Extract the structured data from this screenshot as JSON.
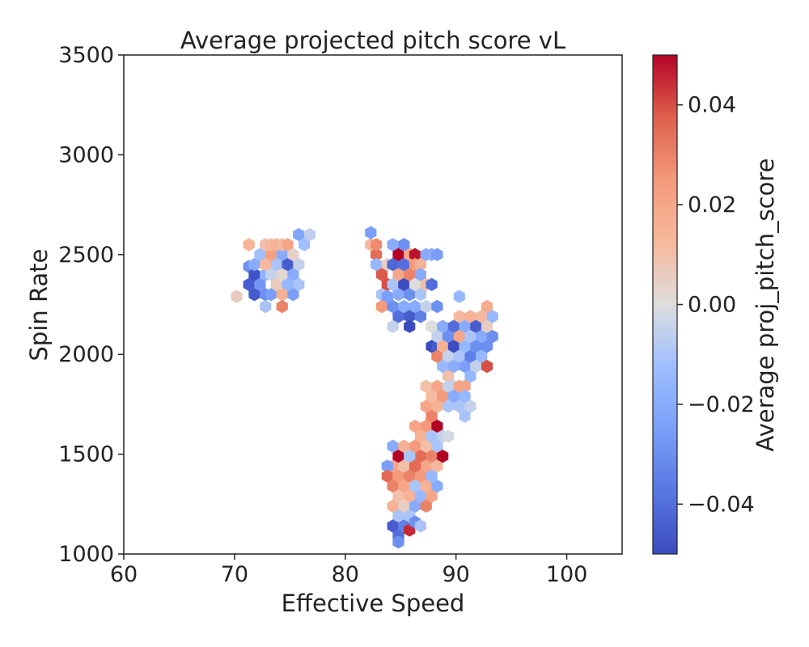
{
  "chart_data": {
    "type": "heatmap",
    "subtype": "hexbin",
    "title": "Average projected pitch score vL",
    "xlabel": "Effective Speed",
    "ylabel": "Spin Rate",
    "xlim": [
      60,
      105
    ],
    "ylim": [
      1000,
      3500
    ],
    "xticks": [
      60,
      70,
      80,
      90,
      100
    ],
    "yticks": [
      1000,
      1500,
      2000,
      2500,
      3000,
      3500
    ],
    "grid": false,
    "colorbar": {
      "label": "Average proj_pitch_score",
      "colormap": "coolwarm",
      "range": [
        -0.05,
        0.05
      ],
      "ticks": [
        0.04,
        0.02,
        0.0,
        -0.02,
        -0.04
      ],
      "tick_labels": [
        "0.04",
        "0.02",
        "0.00",
        "−0.02",
        "−0.04"
      ],
      "colors": {
        "low": "#3b4cc0",
        "mid": "#dddddd",
        "high": "#b40426"
      }
    },
    "cells": [
      {
        "x": 70.2,
        "y": 2290,
        "v": 0.006
      },
      {
        "x": 71.3,
        "y": 2550,
        "v": 0.014
      },
      {
        "x": 71.3,
        "y": 2440,
        "v": -0.03
      },
      {
        "x": 71.3,
        "y": 2350,
        "v": -0.045
      },
      {
        "x": 71.8,
        "y": 2400,
        "v": -0.048
      },
      {
        "x": 71.8,
        "y": 2300,
        "v": -0.046
      },
      {
        "x": 71.8,
        "y": 2450,
        "v": -0.02
      },
      {
        "x": 72.3,
        "y": 2350,
        "v": -0.028
      },
      {
        "x": 72.3,
        "y": 2500,
        "v": -0.012
      },
      {
        "x": 72.8,
        "y": 2400,
        "v": -0.018
      },
      {
        "x": 72.8,
        "y": 2300,
        "v": -0.03
      },
      {
        "x": 72.8,
        "y": 2550,
        "v": 0.01
      },
      {
        "x": 72.8,
        "y": 2450,
        "v": 0.012
      },
      {
        "x": 72.8,
        "y": 2240,
        "v": -0.01
      },
      {
        "x": 73.3,
        "y": 2500,
        "v": 0.022
      },
      {
        "x": 73.3,
        "y": 2400,
        "v": -0.005
      },
      {
        "x": 73.3,
        "y": 2300,
        "v": -0.025
      },
      {
        "x": 73.3,
        "y": 2550,
        "v": 0.012
      },
      {
        "x": 73.8,
        "y": 2350,
        "v": 0.006
      },
      {
        "x": 73.8,
        "y": 2450,
        "v": -0.01
      },
      {
        "x": 73.8,
        "y": 2550,
        "v": 0.015
      },
      {
        "x": 74.3,
        "y": 2400,
        "v": 0.002
      },
      {
        "x": 74.3,
        "y": 2300,
        "v": 0.016
      },
      {
        "x": 74.3,
        "y": 2500,
        "v": -0.02
      },
      {
        "x": 74.3,
        "y": 2240,
        "v": 0.03
      },
      {
        "x": 74.3,
        "y": 2550,
        "v": 0.012
      },
      {
        "x": 74.8,
        "y": 2450,
        "v": -0.045
      },
      {
        "x": 74.8,
        "y": 2350,
        "v": -0.015
      },
      {
        "x": 74.8,
        "y": 2550,
        "v": 0.02
      },
      {
        "x": 75.3,
        "y": 2500,
        "v": 0.004
      },
      {
        "x": 75.3,
        "y": 2400,
        "v": -0.02
      },
      {
        "x": 75.3,
        "y": 2300,
        "v": -0.025
      },
      {
        "x": 75.8,
        "y": 2600,
        "v": -0.022
      },
      {
        "x": 75.8,
        "y": 2450,
        "v": -0.005
      },
      {
        "x": 75.8,
        "y": 2350,
        "v": -0.01
      },
      {
        "x": 76.3,
        "y": 2550,
        "v": -0.012
      },
      {
        "x": 76.8,
        "y": 2600,
        "v": -0.006
      },
      {
        "x": 82.3,
        "y": 2550,
        "v": 0.012
      },
      {
        "x": 82.3,
        "y": 2610,
        "v": -0.025
      },
      {
        "x": 82.8,
        "y": 2500,
        "v": 0.035
      },
      {
        "x": 82.8,
        "y": 2550,
        "v": 0.028
      },
      {
        "x": 82.8,
        "y": 2450,
        "v": -0.015
      },
      {
        "x": 83.3,
        "y": 2400,
        "v": 0.038
      },
      {
        "x": 83.3,
        "y": 2300,
        "v": -0.01
      },
      {
        "x": 83.3,
        "y": 2240,
        "v": 0.025
      },
      {
        "x": 83.8,
        "y": 2350,
        "v": 0.04
      },
      {
        "x": 83.8,
        "y": 2450,
        "v": 0.005
      },
      {
        "x": 83.8,
        "y": 2290,
        "v": -0.025
      },
      {
        "x": 84.3,
        "y": 2550,
        "v": -0.02
      },
      {
        "x": 84.3,
        "y": 2450,
        "v": -0.042
      },
      {
        "x": 84.3,
        "y": 2350,
        "v": -0.01
      },
      {
        "x": 84.3,
        "y": 2240,
        "v": -0.03
      },
      {
        "x": 84.3,
        "y": 2140,
        "v": -0.005
      },
      {
        "x": 84.8,
        "y": 2500,
        "v": 0.05
      },
      {
        "x": 84.8,
        "y": 2400,
        "v": 0.02
      },
      {
        "x": 84.8,
        "y": 2300,
        "v": -0.02
      },
      {
        "x": 84.8,
        "y": 2190,
        "v": -0.04
      },
      {
        "x": 85.3,
        "y": 2550,
        "v": -0.03
      },
      {
        "x": 85.3,
        "y": 2450,
        "v": -0.04
      },
      {
        "x": 85.3,
        "y": 2350,
        "v": -0.05
      },
      {
        "x": 85.3,
        "y": 2240,
        "v": -0.02
      },
      {
        "x": 85.8,
        "y": 2500,
        "v": 0.02
      },
      {
        "x": 85.8,
        "y": 2400,
        "v": 0.03
      },
      {
        "x": 85.8,
        "y": 2300,
        "v": -0.03
      },
      {
        "x": 85.8,
        "y": 2190,
        "v": -0.045
      },
      {
        "x": 85.8,
        "y": 2140,
        "v": -0.05
      },
      {
        "x": 86.3,
        "y": 2500,
        "v": 0.048
      },
      {
        "x": 86.3,
        "y": 2450,
        "v": 0.025
      },
      {
        "x": 86.3,
        "y": 2350,
        "v": 0.0
      },
      {
        "x": 86.3,
        "y": 2240,
        "v": -0.02
      },
      {
        "x": 86.8,
        "y": 2450,
        "v": 0.015
      },
      {
        "x": 86.8,
        "y": 2400,
        "v": -0.02
      },
      {
        "x": 86.8,
        "y": 2300,
        "v": -0.01
      },
      {
        "x": 86.8,
        "y": 2190,
        "v": -0.035
      },
      {
        "x": 87.3,
        "y": 2500,
        "v": -0.02
      },
      {
        "x": 87.3,
        "y": 2350,
        "v": 0.01
      },
      {
        "x": 87.3,
        "y": 2240,
        "v": -0.005
      },
      {
        "x": 87.8,
        "y": 2500,
        "v": -0.02
      },
      {
        "x": 87.8,
        "y": 2350,
        "v": -0.04
      },
      {
        "x": 87.8,
        "y": 2140,
        "v": 0.0
      },
      {
        "x": 87.8,
        "y": 2040,
        "v": -0.05
      },
      {
        "x": 88.3,
        "y": 2500,
        "v": -0.025
      },
      {
        "x": 88.3,
        "y": 2240,
        "v": -0.03
      },
      {
        "x": 88.3,
        "y": 2040,
        "v": -0.045
      },
      {
        "x": 88.3,
        "y": 1990,
        "v": 0.03
      },
      {
        "x": 88.3,
        "y": 2090,
        "v": -0.005
      },
      {
        "x": 88.8,
        "y": 2140,
        "v": -0.02
      },
      {
        "x": 88.8,
        "y": 2040,
        "v": 0.015
      },
      {
        "x": 88.8,
        "y": 1940,
        "v": -0.015
      },
      {
        "x": 89.3,
        "y": 2090,
        "v": -0.03
      },
      {
        "x": 89.3,
        "y": 1990,
        "v": -0.005
      },
      {
        "x": 89.3,
        "y": 1890,
        "v": 0.01
      },
      {
        "x": 89.8,
        "y": 2140,
        "v": -0.04
      },
      {
        "x": 89.8,
        "y": 2040,
        "v": -0.05
      },
      {
        "x": 89.8,
        "y": 1940,
        "v": -0.02
      },
      {
        "x": 89.8,
        "y": 1840,
        "v": -0.005
      },
      {
        "x": 90.3,
        "y": 2190,
        "v": 0.012
      },
      {
        "x": 90.3,
        "y": 2090,
        "v": 0.02
      },
      {
        "x": 90.3,
        "y": 1990,
        "v": -0.01
      },
      {
        "x": 90.3,
        "y": 2290,
        "v": -0.015
      },
      {
        "x": 90.8,
        "y": 2140,
        "v": -0.02
      },
      {
        "x": 90.8,
        "y": 2040,
        "v": -0.015
      },
      {
        "x": 90.8,
        "y": 1940,
        "v": -0.025
      },
      {
        "x": 90.8,
        "y": 1840,
        "v": 0.02
      },
      {
        "x": 91.3,
        "y": 2190,
        "v": 0.015
      },
      {
        "x": 91.3,
        "y": 2090,
        "v": -0.01
      },
      {
        "x": 91.3,
        "y": 1990,
        "v": -0.035
      },
      {
        "x": 91.3,
        "y": 1890,
        "v": -0.015
      },
      {
        "x": 91.8,
        "y": 2140,
        "v": -0.045
      },
      {
        "x": 91.8,
        "y": 2040,
        "v": -0.03
      },
      {
        "x": 91.8,
        "y": 1940,
        "v": -0.005
      },
      {
        "x": 92.3,
        "y": 2190,
        "v": 0.012
      },
      {
        "x": 92.3,
        "y": 2090,
        "v": -0.02
      },
      {
        "x": 92.3,
        "y": 1990,
        "v": -0.015
      },
      {
        "x": 92.8,
        "y": 2240,
        "v": 0.018
      },
      {
        "x": 92.8,
        "y": 2140,
        "v": 0.005
      },
      {
        "x": 92.8,
        "y": 2040,
        "v": -0.03
      },
      {
        "x": 92.8,
        "y": 1940,
        "v": 0.04
      },
      {
        "x": 93.3,
        "y": 2190,
        "v": -0.015
      },
      {
        "x": 93.3,
        "y": 2090,
        "v": -0.03
      },
      {
        "x": 87.3,
        "y": 1840,
        "v": 0.01
      },
      {
        "x": 87.3,
        "y": 1740,
        "v": 0.02
      },
      {
        "x": 87.3,
        "y": 1640,
        "v": 0.025
      },
      {
        "x": 87.8,
        "y": 1790,
        "v": 0.012
      },
      {
        "x": 87.8,
        "y": 1690,
        "v": 0.03
      },
      {
        "x": 88.3,
        "y": 1840,
        "v": 0.02
      },
      {
        "x": 88.3,
        "y": 1740,
        "v": 0.015
      },
      {
        "x": 88.3,
        "y": 1640,
        "v": 0.05
      },
      {
        "x": 88.8,
        "y": 1790,
        "v": 0.025
      },
      {
        "x": 89.3,
        "y": 1840,
        "v": -0.005
      },
      {
        "x": 89.3,
        "y": 1740,
        "v": -0.01
      },
      {
        "x": 89.8,
        "y": 1790,
        "v": -0.02
      },
      {
        "x": 90.3,
        "y": 1840,
        "v": 0.02
      },
      {
        "x": 90.3,
        "y": 1740,
        "v": -0.01
      },
      {
        "x": 90.8,
        "y": 1790,
        "v": -0.015
      },
      {
        "x": 90.8,
        "y": 1690,
        "v": -0.01
      },
      {
        "x": 91.3,
        "y": 1740,
        "v": -0.005
      },
      {
        "x": 86.3,
        "y": 1640,
        "v": 0.02
      },
      {
        "x": 86.3,
        "y": 1540,
        "v": 0.025
      },
      {
        "x": 86.8,
        "y": 1590,
        "v": 0.015
      },
      {
        "x": 86.8,
        "y": 1490,
        "v": 0.035
      },
      {
        "x": 87.3,
        "y": 1540,
        "v": 0.01
      },
      {
        "x": 87.3,
        "y": 1440,
        "v": 0.02
      },
      {
        "x": 87.8,
        "y": 1590,
        "v": -0.01
      },
      {
        "x": 87.8,
        "y": 1490,
        "v": 0.03
      },
      {
        "x": 88.3,
        "y": 1540,
        "v": -0.01
      },
      {
        "x": 88.3,
        "y": 1440,
        "v": 0.012
      },
      {
        "x": 88.8,
        "y": 1590,
        "v": -0.005
      },
      {
        "x": 88.8,
        "y": 1490,
        "v": 0.05
      },
      {
        "x": 89.3,
        "y": 1590,
        "v": -0.002
      },
      {
        "x": 84.3,
        "y": 1540,
        "v": -0.02
      },
      {
        "x": 84.3,
        "y": 1440,
        "v": 0.02
      },
      {
        "x": 84.3,
        "y": 1340,
        "v": 0.03
      },
      {
        "x": 84.3,
        "y": 1240,
        "v": 0.015
      },
      {
        "x": 83.8,
        "y": 1440,
        "v": -0.025
      },
      {
        "x": 83.8,
        "y": 1390,
        "v": 0.035
      },
      {
        "x": 84.8,
        "y": 1490,
        "v": 0.05
      },
      {
        "x": 84.8,
        "y": 1390,
        "v": 0.025
      },
      {
        "x": 84.8,
        "y": 1290,
        "v": 0.01
      },
      {
        "x": 84.8,
        "y": 1190,
        "v": -0.01
      },
      {
        "x": 85.3,
        "y": 1540,
        "v": 0.015
      },
      {
        "x": 85.3,
        "y": 1440,
        "v": 0.01
      },
      {
        "x": 85.3,
        "y": 1340,
        "v": 0.02
      },
      {
        "x": 85.3,
        "y": 1240,
        "v": 0.005
      },
      {
        "x": 85.8,
        "y": 1490,
        "v": -0.01
      },
      {
        "x": 85.8,
        "y": 1390,
        "v": 0.03
      },
      {
        "x": 85.8,
        "y": 1290,
        "v": 0.015
      },
      {
        "x": 86.3,
        "y": 1440,
        "v": 0.035
      },
      {
        "x": 86.3,
        "y": 1340,
        "v": -0.01
      },
      {
        "x": 86.3,
        "y": 1240,
        "v": -0.02
      },
      {
        "x": 86.8,
        "y": 1390,
        "v": 0.025
      },
      {
        "x": 86.8,
        "y": 1290,
        "v": -0.015
      },
      {
        "x": 87.3,
        "y": 1340,
        "v": 0.015
      },
      {
        "x": 87.3,
        "y": 1240,
        "v": 0.03
      },
      {
        "x": 87.8,
        "y": 1390,
        "v": -0.015
      },
      {
        "x": 87.8,
        "y": 1290,
        "v": 0.02
      },
      {
        "x": 88.3,
        "y": 1340,
        "v": -0.02
      },
      {
        "x": 84.3,
        "y": 1140,
        "v": -0.045
      },
      {
        "x": 84.8,
        "y": 1090,
        "v": -0.04
      },
      {
        "x": 84.8,
        "y": 1060,
        "v": -0.03
      },
      {
        "x": 85.3,
        "y": 1140,
        "v": -0.035
      },
      {
        "x": 85.8,
        "y": 1190,
        "v": -0.01
      },
      {
        "x": 85.8,
        "y": 1120,
        "v": 0.045
      },
      {
        "x": 86.3,
        "y": 1160,
        "v": -0.03
      },
      {
        "x": 86.8,
        "y": 1140,
        "v": -0.01
      }
    ]
  }
}
